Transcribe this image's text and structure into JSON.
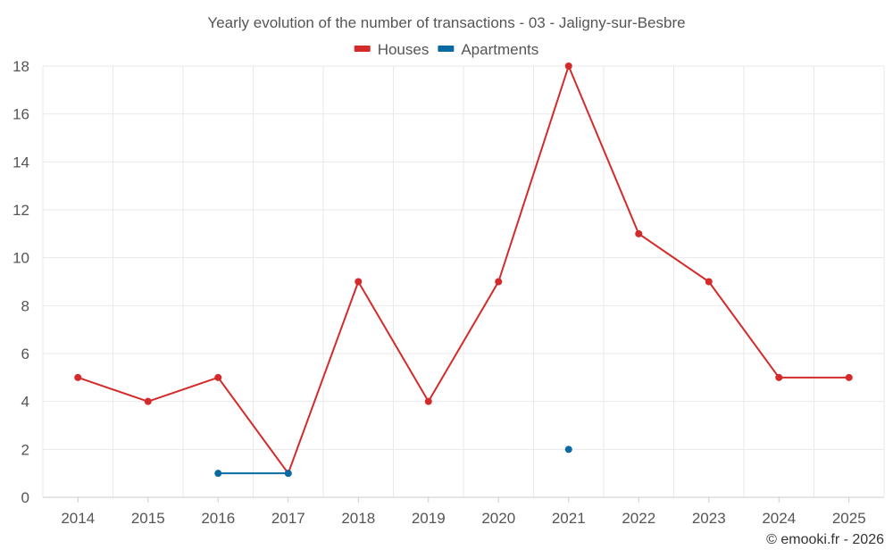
{
  "chart_data": {
    "type": "line",
    "title": "Yearly evolution of the number of transactions - 03 - Jaligny-sur-Besbre",
    "x": [
      "2014",
      "2015",
      "2016",
      "2017",
      "2018",
      "2019",
      "2020",
      "2021",
      "2022",
      "2023",
      "2024",
      "2025"
    ],
    "ylim": [
      0,
      18
    ],
    "yticks": [
      0,
      2,
      4,
      6,
      8,
      10,
      12,
      14,
      16,
      18
    ],
    "grid": true,
    "legend_position": "top",
    "series": [
      {
        "name": "Houses",
        "color": "#d42a2a",
        "values": [
          5,
          4,
          5,
          1,
          9,
          4,
          9,
          18,
          11,
          9,
          5,
          5
        ]
      },
      {
        "name": "Apartments",
        "color": "#0a6aa1",
        "values": [
          null,
          null,
          1,
          1,
          null,
          null,
          null,
          2,
          null,
          null,
          null,
          null
        ]
      }
    ]
  },
  "credit": "© emooki.fr - 2026"
}
